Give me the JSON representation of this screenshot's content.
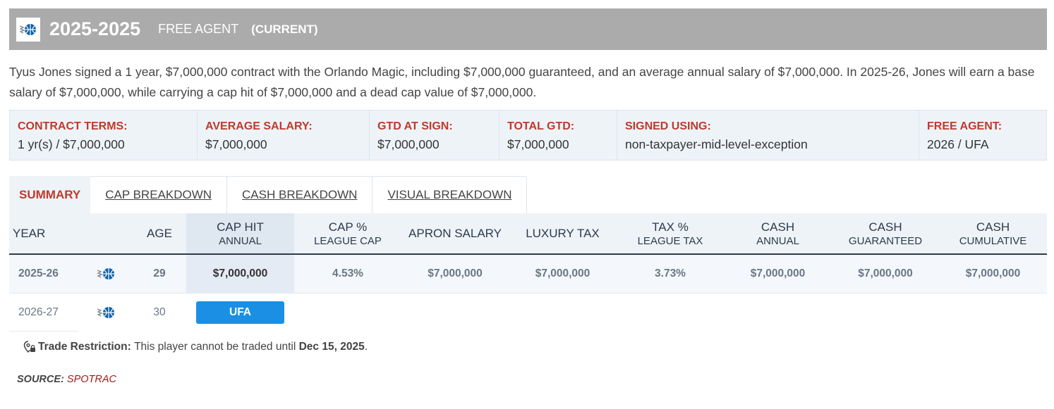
{
  "header": {
    "years": "2025-2025",
    "status": "FREE AGENT",
    "current": "(CURRENT)",
    "logo_icon": "orlando-magic-logo"
  },
  "description": "Tyus Jones signed a 1 year, $7,000,000 contract with the Orlando Magic, including $7,000,000 guaranteed, and an average annual salary of $7,000,000. In 2025-26, Jones will earn a base salary of $7,000,000, while carrying a cap hit of $7,000,000 and a dead cap value of $7,000,000.",
  "terms": [
    {
      "label": "CONTRACT TERMS:",
      "value": "1 yr(s) / $7,000,000"
    },
    {
      "label": "AVERAGE SALARY:",
      "value": "$7,000,000"
    },
    {
      "label": "GTD AT SIGN:",
      "value": "$7,000,000"
    },
    {
      "label": "TOTAL GTD:",
      "value": "$7,000,000"
    },
    {
      "label": "SIGNED USING:",
      "value": "non-taxpayer-mid-level-exception"
    },
    {
      "label": "FREE AGENT:",
      "value": "2026 / UFA"
    }
  ],
  "tabs": [
    "SUMMARY",
    "CAP BREAKDOWN",
    "CASH BREAKDOWN",
    "VISUAL BREAKDOWN"
  ],
  "table": {
    "headers": [
      {
        "main": "YEAR",
        "sub": ""
      },
      {
        "main": "AGE",
        "sub": ""
      },
      {
        "main": "CAP HIT",
        "sub": "ANNUAL"
      },
      {
        "main": "CAP %",
        "sub": "LEAGUE CAP"
      },
      {
        "main": "APRON SALARY",
        "sub": ""
      },
      {
        "main": "LUXURY TAX",
        "sub": ""
      },
      {
        "main": "TAX %",
        "sub": "LEAGUE TAX"
      },
      {
        "main": "CASH",
        "sub": "ANNUAL"
      },
      {
        "main": "CASH",
        "sub": "GUARANTEED"
      },
      {
        "main": "CASH",
        "sub": "CUMULATIVE"
      }
    ],
    "rows": [
      {
        "year": "2025-26",
        "age": "29",
        "cap_hit": "$7,000,000",
        "cap_pct": "4.53%",
        "apron": "$7,000,000",
        "lux_tax": "$7,000,000",
        "tax_pct": "3.73%",
        "cash_annual": "$7,000,000",
        "cash_gtd": "$7,000,000",
        "cash_cum": "$7,000,000"
      },
      {
        "year": "2026-27",
        "age": "30",
        "badge": "UFA"
      }
    ]
  },
  "restriction": {
    "label": "Trade Restriction:",
    "text": "This player cannot be traded until",
    "date": "Dec 15, 2025",
    "end": "."
  },
  "source": {
    "label": "SOURCE:",
    "value": "SPOTRAC"
  },
  "colors": {
    "header_bg": "#ababab",
    "accent_red": "#c0392b",
    "badge_blue": "#1a8fe3",
    "panel_bg": "#eef3f8"
  }
}
